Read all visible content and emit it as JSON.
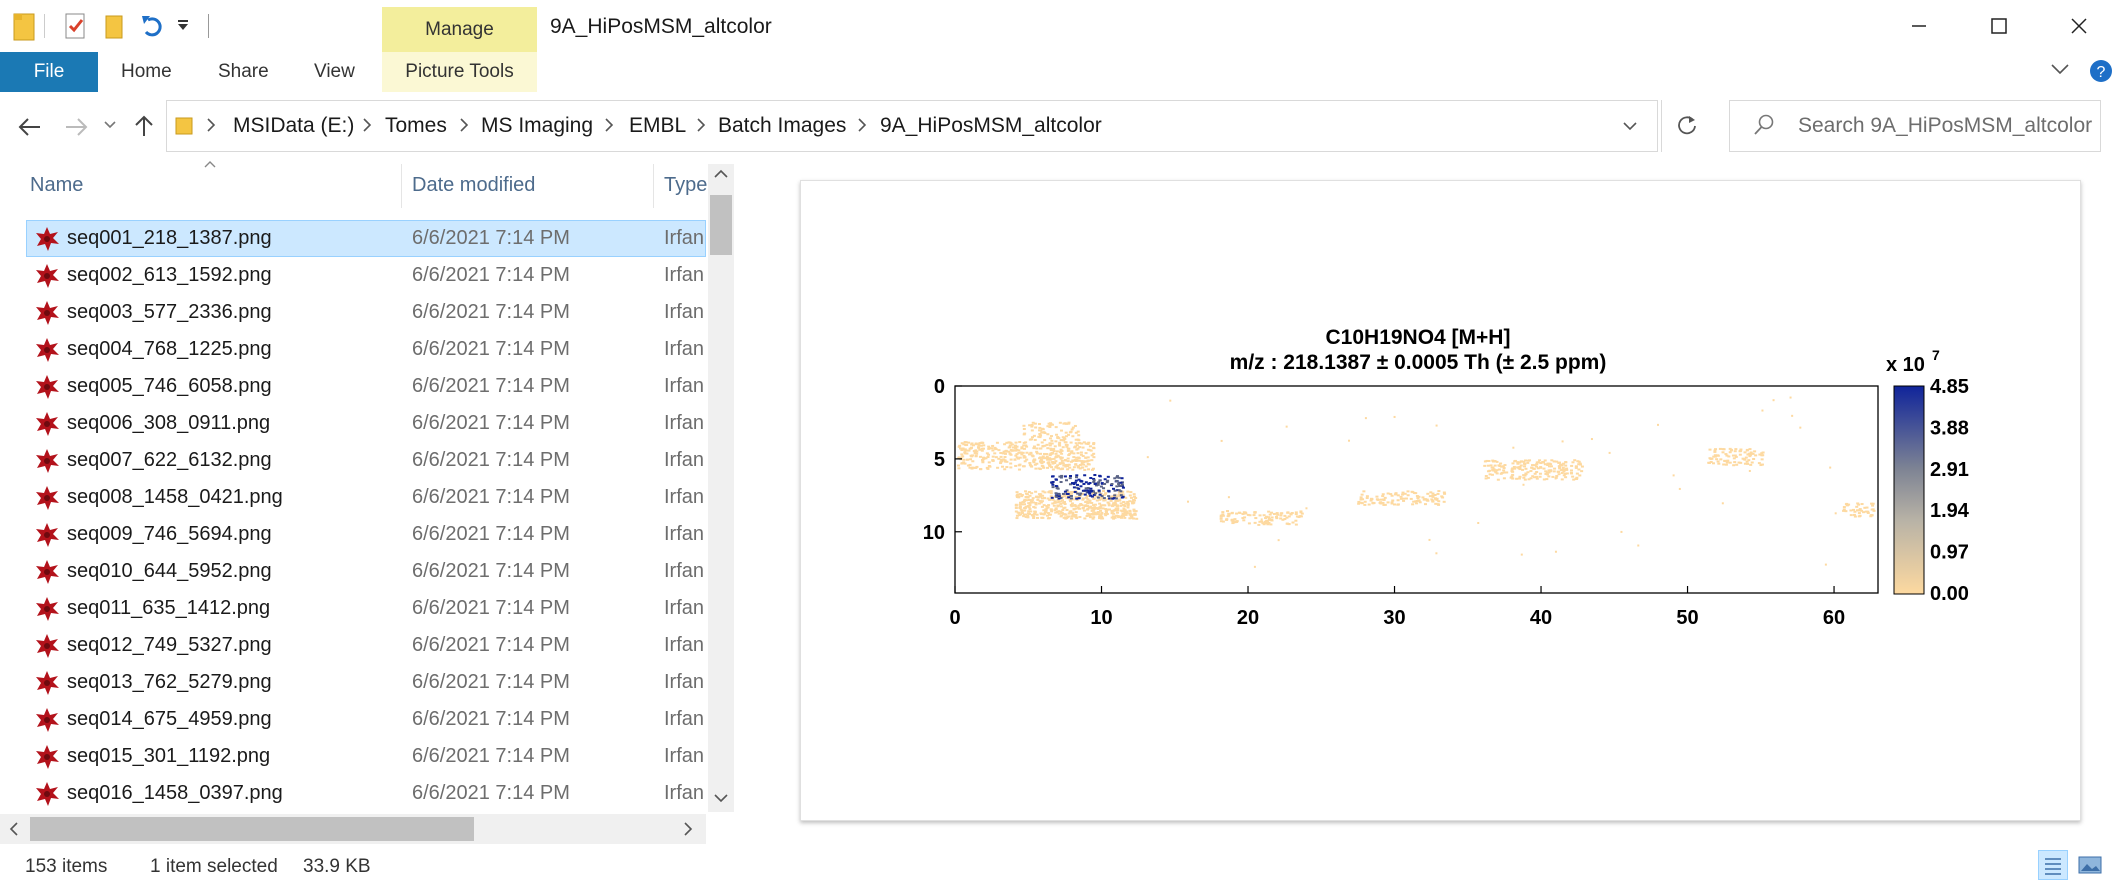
{
  "window": {
    "title": "9A_HiPosMSM_altcolor"
  },
  "ribbon": {
    "contextual_group": "Manage",
    "tabs": [
      "File",
      "Home",
      "Share",
      "View",
      "Picture Tools"
    ]
  },
  "address": {
    "crumbs": [
      "MSIData (E:)",
      "Tomes",
      "MS Imaging",
      "EMBL",
      "Batch Images",
      "9A_HiPosMSM_altcolor"
    ]
  },
  "search": {
    "placeholder": "Search 9A_HiPosMSM_altcolor"
  },
  "list": {
    "columns": {
      "name": "Name",
      "date": "Date modified",
      "type": "Type"
    },
    "rows": [
      {
        "name": "seq001_218_1387.png",
        "date": "6/6/2021 7:14 PM",
        "type": "Irfan",
        "selected": true
      },
      {
        "name": "seq002_613_1592.png",
        "date": "6/6/2021 7:14 PM",
        "type": "Irfan"
      },
      {
        "name": "seq003_577_2336.png",
        "date": "6/6/2021 7:14 PM",
        "type": "Irfan"
      },
      {
        "name": "seq004_768_1225.png",
        "date": "6/6/2021 7:14 PM",
        "type": "Irfan"
      },
      {
        "name": "seq005_746_6058.png",
        "date": "6/6/2021 7:14 PM",
        "type": "Irfan"
      },
      {
        "name": "seq006_308_0911.png",
        "date": "6/6/2021 7:14 PM",
        "type": "Irfan"
      },
      {
        "name": "seq007_622_6132.png",
        "date": "6/6/2021 7:14 PM",
        "type": "Irfan"
      },
      {
        "name": "seq008_1458_0421.png",
        "date": "6/6/2021 7:14 PM",
        "type": "Irfan"
      },
      {
        "name": "seq009_746_5694.png",
        "date": "6/6/2021 7:14 PM",
        "type": "Irfan"
      },
      {
        "name": "seq010_644_5952.png",
        "date": "6/6/2021 7:14 PM",
        "type": "Irfan"
      },
      {
        "name": "seq011_635_1412.png",
        "date": "6/6/2021 7:14 PM",
        "type": "Irfan"
      },
      {
        "name": "seq012_749_5327.png",
        "date": "6/6/2021 7:14 PM",
        "type": "Irfan"
      },
      {
        "name": "seq013_762_5279.png",
        "date": "6/6/2021 7:14 PM",
        "type": "Irfan"
      },
      {
        "name": "seq014_675_4959.png",
        "date": "6/6/2021 7:14 PM",
        "type": "Irfan"
      },
      {
        "name": "seq015_301_1192.png",
        "date": "6/6/2021 7:14 PM",
        "type": "Irfan"
      },
      {
        "name": "seq016_1458_0397.png",
        "date": "6/6/2021 7:14 PM",
        "type": "Irfan"
      }
    ]
  },
  "preview": {
    "title_line1": "C10H19NO4 [M+H]",
    "title_line2": "m/z : 218.1387 ± 0.0005 Th (± 2.5 ppm)",
    "colorbar_exponent_base": "x 10",
    "colorbar_exponent_power": "7",
    "colorbar_ticks": [
      "4.85",
      "3.88",
      "2.91",
      "1.94",
      "0.97",
      "0.00"
    ],
    "x_ticks": [
      "0",
      "10",
      "20",
      "30",
      "40",
      "50",
      "60"
    ],
    "y_ticks": [
      "0",
      "5",
      "10"
    ],
    "colors": {
      "low": "#fdd9a0",
      "high": "#10249a"
    }
  },
  "status": {
    "items": "153 items",
    "selection": "1 item selected",
    "size": "33.9 KB"
  }
}
